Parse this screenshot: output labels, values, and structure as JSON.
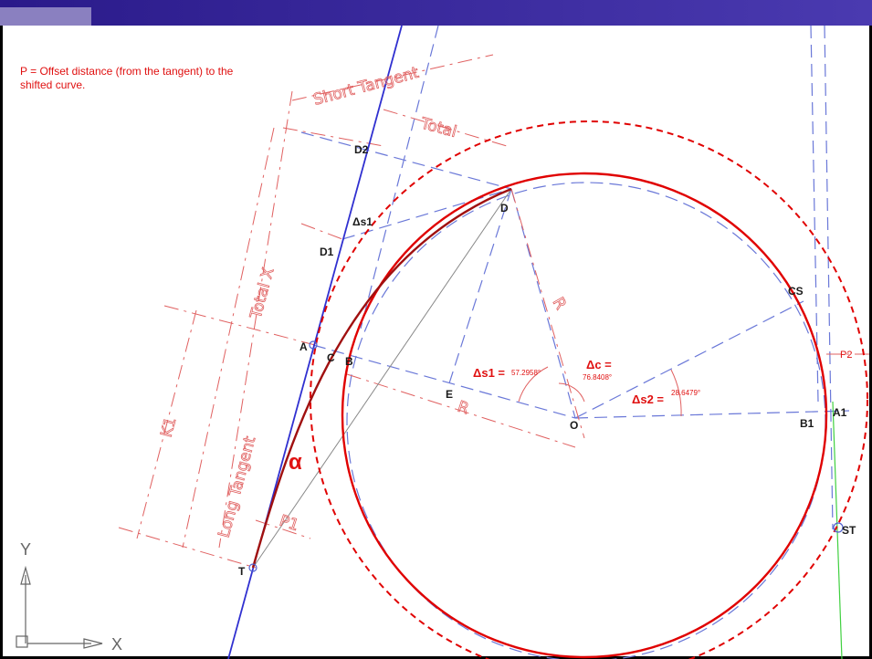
{
  "note": {
    "line1": "P = Offset distance (from the tangent) to the",
    "line2": "shifted curve."
  },
  "labels": {
    "short_tangent": "Short Tangent",
    "total": "Total",
    "total_x": "Total X",
    "long_tangent": "Long Tangent",
    "k1": "K1",
    "r_upper": "R",
    "r_lower": "R",
    "p1": "P1",
    "p2": "P2",
    "d2": "D2",
    "d": "D",
    "ds1": "Δs1",
    "d1": "D1",
    "a": "A",
    "c": "C",
    "b": "B",
    "e": "E",
    "o": "O",
    "cs": "CS",
    "b1": "B1",
    "a1": "A1",
    "t": "T",
    "st": "ST",
    "alpha": "α",
    "ds1_eq": "Δs1 =",
    "ds1_val": "57.2958°",
    "dc_eq": "Δc =",
    "dc_val": "76.8408°",
    "ds2_eq": "Δs2 =",
    "ds2_val": "28.6479°",
    "axis_y": "Y",
    "axis_x": "X"
  }
}
